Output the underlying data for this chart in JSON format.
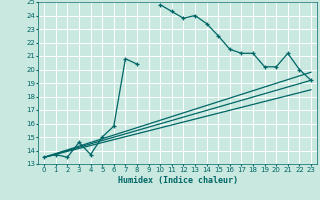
{
  "xlabel": "Humidex (Indice chaleur)",
  "bg_color": "#c8e8e0",
  "grid_color": "#ffffff",
  "line_color": "#006666",
  "xlim": [
    -0.5,
    23.5
  ],
  "ylim": [
    13,
    25
  ],
  "xticks": [
    0,
    1,
    2,
    3,
    4,
    5,
    6,
    7,
    8,
    9,
    10,
    11,
    12,
    13,
    14,
    15,
    16,
    17,
    18,
    19,
    20,
    21,
    22,
    23
  ],
  "yticks": [
    13,
    14,
    15,
    16,
    17,
    18,
    19,
    20,
    21,
    22,
    23,
    24,
    25
  ],
  "series": [
    {
      "x": [
        0,
        1,
        2,
        3,
        4,
        5,
        6,
        7,
        8,
        9,
        10,
        11,
        12,
        13,
        14,
        15,
        16,
        17,
        18,
        19,
        20,
        21,
        22,
        23
      ],
      "y": [
        13.5,
        13.7,
        13.5,
        14.6,
        13.7,
        15.0,
        15.8,
        20.8,
        20.4,
        null,
        24.8,
        24.3,
        23.8,
        24.0,
        23.4,
        22.5,
        21.5,
        21.2,
        21.2,
        20.2,
        20.2,
        21.2,
        20.0,
        19.2
      ]
    },
    {
      "x": [
        0,
        23
      ],
      "y": [
        13.5,
        19.2
      ]
    },
    {
      "x": [
        0,
        23
      ],
      "y": [
        13.5,
        18.5
      ]
    },
    {
      "x": [
        0,
        23
      ],
      "y": [
        13.5,
        19.8
      ]
    }
  ]
}
